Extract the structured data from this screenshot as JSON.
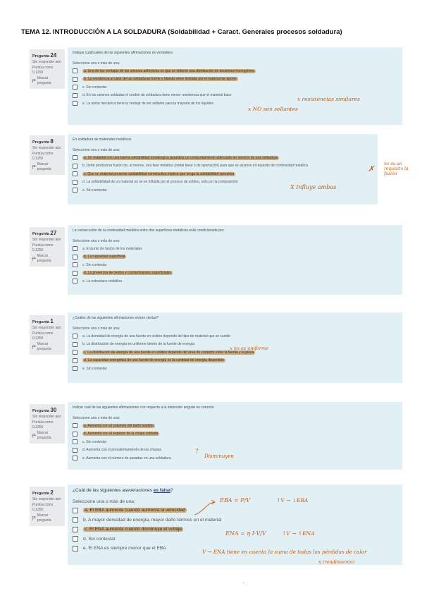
{
  "title": "TEMA 12. INTRODUCCIÓN A LA SOLDADURA (Soldabilidad + Caract. Generales procesos soldadura)",
  "common": {
    "status": "Sin responder aún",
    "score": "Puntúa como 0,1250",
    "flag_label": "Marcar pregunta",
    "pregunta_label": "Pregunta",
    "select_prompt": "Seleccione una o más de una:"
  },
  "questions": [
    {
      "number": "24",
      "text": "Indique cuál/cuales de las siguientes afirmaciones es verdadera",
      "options": [
        {
          "label": "a. Una de las ventajas de las uniones adhesivas es que se obtiene una distribución de tensiones homogénea",
          "highlighted": true
        },
        {
          "label": "b. La resistencia al calor de las soldaduras fuerte y blanda viene limitada por el material de aporte",
          "highlighted": true
        },
        {
          "label": "c. Sin contestar",
          "highlighted": false
        },
        {
          "label": "d. En las uniones soldadas el cordón de soldadura tiene menor resistencia que el material base",
          "highlighted": false
        },
        {
          "label": "e. La unión mecánica tiene la ventaje de ser sellante para la mayoría de los líquidos",
          "highlighted": false
        }
      ],
      "notes": [
        "x resistencias similares",
        "x NO son sellantes"
      ]
    },
    {
      "number": "8",
      "text": "En soldadura de materiales metálicos",
      "options": [
        {
          "label": "a. Un material con una buena soldabilidad metalúrgica garantiza un comportamiento adecuado en servicio de esa soldadura",
          "highlighted": true
        },
        {
          "label": "b. Debe producirse fusión de, al menos, una fase metálica (metal base o de aportación) para que se alcance el requisito de continuidad metálica",
          "highlighted": false
        },
        {
          "label": "c. Que un material presente soldabilidad constructiva implica que tenga la soldabilidad operativa",
          "highlighted": true
        },
        {
          "label": "d. La soldabilidad de un material no se ve influida por el proceso de soldeo, sólo por la composición",
          "highlighted": false
        },
        {
          "label": "e. Sin contestar",
          "highlighted": false
        }
      ],
      "notes": [
        "X Influye ambas",
        "no es un requisito la fusión"
      ]
    },
    {
      "number": "27",
      "text": "La consecución de la continuidad metálica entre dos superficies metálicas está condicionada por:",
      "options": [
        {
          "label": "a. El punto de fusión de los materiales",
          "highlighted": false
        },
        {
          "label": "b. La rugosidad superficial",
          "highlighted": true
        },
        {
          "label": "c. Sin contestar",
          "highlighted": false
        },
        {
          "label": "d. La presencia de óxidos y contaminantes superficiales",
          "highlighted": true
        },
        {
          "label": "e. La estructura cristalina",
          "highlighted": false
        }
      ],
      "notes": []
    },
    {
      "number": "1",
      "text": "¿Cuáles de las siguientes afirmaciones es/son ciertas?",
      "options": [
        {
          "label": "a. La densidad de energía de una fuente en soldeo depende del tipo de material que se suelde",
          "highlighted": false
        },
        {
          "label": "b. La distribución de energía es uniforme dentro de la fuente de energía",
          "highlighted": false
        },
        {
          "label": "c. La distribución de energía de una fuente en soldeo depende del área de contacto entre la fuente y la pieza",
          "highlighted": true
        },
        {
          "label": "d. La capacidad energética de una fuente de energía es la cantidad de energía disponible",
          "highlighted": true
        },
        {
          "label": "e. Sin contestar",
          "highlighted": false
        }
      ],
      "notes": [
        "x no es uniforme"
      ]
    },
    {
      "number": "30",
      "text": "Indicar cuál de las siguientes afirmaciones con respecto a la distorsión angular es correcta",
      "options": [
        {
          "label": "a. Aumenta con el volumen del baño fundido",
          "highlighted": true
        },
        {
          "label": "b. Aumenta con el espesor de la chapa soldada",
          "highlighted": true
        },
        {
          "label": "c. Sin contestar",
          "highlighted": false
        },
        {
          "label": "d. Aumenta con el precalentamiento de las chapas",
          "highlighted": false
        },
        {
          "label": "e. Aumenta con el número de pasadas en una soldadura",
          "highlighted": false
        }
      ],
      "notes": [
        "Disminuyen"
      ]
    },
    {
      "number": "2",
      "text_pre": "¿Cuál de las siguientes aseveraciones ",
      "text_emph": "es falsa",
      "text_post": "?",
      "options": [
        {
          "label": "a. El EBA aumenta cuando aumenta la velocidad",
          "highlighted": true
        },
        {
          "label": "b. A mayor densidad de energía, mayor daño térmico en el material",
          "highlighted": false
        },
        {
          "label": "c. El ENA aumenta cuando disminuye el voltaje",
          "highlighted": true
        },
        {
          "label": "d. Sin contestar",
          "highlighted": false
        },
        {
          "label": "e. El ENA es siempre menor que el EBA",
          "highlighted": false
        }
      ],
      "notes": [
        "EBA = P/V",
        "↑V → ↓EBA",
        "ENA = η I·V/V",
        "↑V → ↑ENA",
        "V → ENA tiene en cuenta la suma de todas las pérdidas de calor",
        "η (rendimiento)"
      ]
    }
  ],
  "colors": {
    "highlight": "#cda978",
    "ink": "#d25a0a",
    "box_bg": "#e1f0f5",
    "info_bg": "#e8eaec",
    "emphasis": "#2b3f8a"
  }
}
